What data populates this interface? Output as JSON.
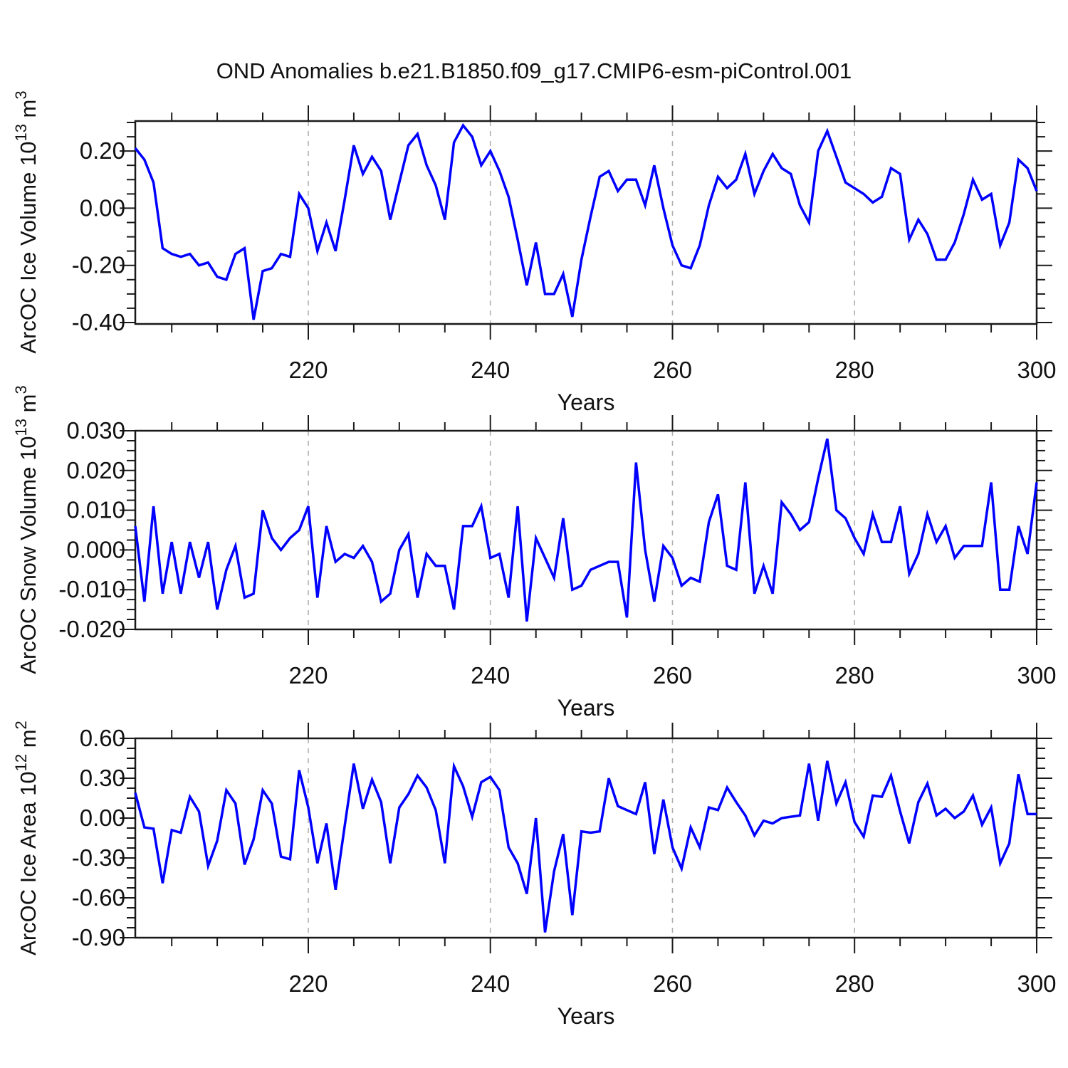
{
  "title": "OND Anomalies b.e21.B1850.f09_g17.CMIP6-esm-piControl.001",
  "xlabel": "Years",
  "axis_color": "#1a1a1a",
  "grid_color": "#b0b0b0",
  "line_color": "#0000ff",
  "xticks": [
    220,
    240,
    260,
    280,
    300
  ],
  "xtick_labels": [
    "220",
    "240",
    "260",
    "280",
    "300"
  ],
  "grid_years": [
    220,
    240,
    260,
    280
  ],
  "xminor_step": 5,
  "years": [
    201,
    202,
    203,
    204,
    205,
    206,
    207,
    208,
    209,
    210,
    211,
    212,
    213,
    214,
    215,
    216,
    217,
    218,
    219,
    220,
    221,
    222,
    223,
    224,
    225,
    226,
    227,
    228,
    229,
    230,
    231,
    232,
    233,
    234,
    235,
    236,
    237,
    238,
    239,
    240,
    241,
    242,
    243,
    244,
    245,
    246,
    247,
    248,
    249,
    250,
    251,
    252,
    253,
    254,
    255,
    256,
    257,
    258,
    259,
    260,
    261,
    262,
    263,
    264,
    265,
    266,
    267,
    268,
    269,
    270,
    271,
    272,
    273,
    274,
    275,
    276,
    277,
    278,
    279,
    280,
    281,
    282,
    283,
    284,
    285,
    286,
    287,
    288,
    289,
    290,
    291,
    292,
    293,
    294,
    295,
    296,
    297,
    298,
    299,
    300
  ],
  "chart_data": [
    {
      "type": "line",
      "id": "ice-volume",
      "ylabel_text": "ArcOC Ice Volume 10^13 m^3",
      "ylabel_parts": [
        {
          "t": "ArcOC Ice Volume 10"
        },
        {
          "t": "13",
          "sup": true
        },
        {
          "t": " m"
        },
        {
          "t": "3",
          "sup": true
        }
      ],
      "ylim": [
        -0.405,
        0.305
      ],
      "yticks": [
        0.2,
        0.0,
        -0.2,
        -0.4
      ],
      "ytick_labels": [
        "0.20",
        "0.00",
        "-0.20",
        "-0.40"
      ],
      "yminor_from": -0.4,
      "yminor_step": 0.05,
      "values": [
        0.21,
        0.17,
        0.09,
        -0.14,
        -0.16,
        -0.17,
        -0.16,
        -0.2,
        -0.19,
        -0.24,
        -0.25,
        -0.16,
        -0.14,
        -0.39,
        -0.22,
        -0.21,
        -0.16,
        -0.17,
        0.05,
        0.0,
        -0.15,
        -0.05,
        -0.15,
        0.03,
        0.22,
        0.12,
        0.18,
        0.13,
        -0.04,
        0.09,
        0.22,
        0.26,
        0.15,
        0.08,
        -0.04,
        0.23,
        0.29,
        0.25,
        0.15,
        0.2,
        0.13,
        0.04,
        -0.11,
        -0.27,
        -0.12,
        -0.3,
        -0.3,
        -0.23,
        -0.38,
        -0.18,
        -0.03,
        0.11,
        0.13,
        0.06,
        0.1,
        0.1,
        0.01,
        0.15,
        0.0,
        -0.13,
        -0.2,
        -0.21,
        -0.13,
        0.01,
        0.11,
        0.07,
        0.1,
        0.19,
        0.05,
        0.13,
        0.19,
        0.14,
        0.12,
        0.01,
        -0.05,
        0.2,
        0.27,
        0.18,
        0.09,
        0.07,
        0.05,
        0.02,
        0.04,
        0.14,
        0.12,
        -0.11,
        -0.04,
        -0.09,
        -0.18,
        -0.18,
        -0.12,
        -0.02,
        0.1,
        0.03,
        0.05,
        -0.13,
        -0.05,
        0.17,
        0.14,
        0.06
      ]
    },
    {
      "type": "line",
      "id": "snow-volume",
      "ylabel_text": "ArcOC Snow Volume 10^13 m^3",
      "ylabel_parts": [
        {
          "t": "ArcOC Snow Volume 10"
        },
        {
          "t": "13",
          "sup": true
        },
        {
          "t": " m"
        },
        {
          "t": "3",
          "sup": true
        }
      ],
      "ylim": [
        -0.02,
        0.03
      ],
      "yticks": [
        0.03,
        0.02,
        0.01,
        0.0,
        -0.01,
        -0.02
      ],
      "ytick_labels": [
        "0.030",
        "0.020",
        "0.010",
        "0.000",
        "-0.010",
        "-0.020"
      ],
      "yminor_from": -0.02,
      "yminor_step": 0.0025,
      "values": [
        0.006,
        -0.013,
        0.011,
        -0.011,
        0.002,
        -0.011,
        0.002,
        -0.007,
        0.002,
        -0.015,
        -0.005,
        0.001,
        -0.012,
        -0.011,
        0.01,
        0.003,
        0.0,
        0.003,
        0.005,
        0.011,
        -0.012,
        0.006,
        -0.003,
        -0.001,
        -0.002,
        0.001,
        -0.003,
        -0.013,
        -0.011,
        0.0,
        0.004,
        -0.012,
        -0.001,
        -0.004,
        -0.004,
        -0.015,
        0.006,
        0.006,
        0.011,
        -0.002,
        -0.001,
        -0.012,
        0.011,
        -0.018,
        0.003,
        -0.002,
        -0.007,
        0.008,
        -0.01,
        -0.009,
        -0.005,
        -0.004,
        -0.003,
        -0.003,
        -0.017,
        0.022,
        0.0,
        -0.013,
        0.001,
        -0.002,
        -0.009,
        -0.007,
        -0.008,
        0.007,
        0.014,
        -0.004,
        -0.005,
        0.017,
        -0.011,
        -0.004,
        -0.011,
        0.012,
        0.009,
        0.005,
        0.007,
        0.018,
        0.028,
        0.01,
        0.008,
        0.003,
        -0.001,
        0.009,
        0.002,
        0.002,
        0.011,
        -0.006,
        -0.001,
        0.009,
        0.002,
        0.006,
        -0.002,
        0.001,
        0.001,
        0.001,
        0.017,
        -0.01,
        -0.01,
        0.006,
        -0.001,
        0.017
      ]
    },
    {
      "type": "line",
      "id": "ice-area",
      "ylabel_text": "ArcOC Ice Area 10^12 m^2",
      "ylabel_parts": [
        {
          "t": "ArcOC Ice Area 10"
        },
        {
          "t": "12",
          "sup": true
        },
        {
          "t": " m"
        },
        {
          "t": "2",
          "sup": true
        }
      ],
      "ylim": [
        -0.9,
        0.6
      ],
      "yticks": [
        0.6,
        0.3,
        0.0,
        -0.3,
        -0.6,
        -0.9
      ],
      "ytick_labels": [
        "0.60",
        "0.30",
        "0.00",
        "-0.30",
        "-0.60",
        "-0.90"
      ],
      "yminor_from": -0.9,
      "yminor_step": 0.075,
      "values": [
        0.19,
        -0.07,
        -0.08,
        -0.49,
        -0.09,
        -0.11,
        0.16,
        0.05,
        -0.36,
        -0.17,
        0.21,
        0.11,
        -0.35,
        -0.16,
        0.21,
        0.11,
        -0.29,
        -0.31,
        0.36,
        0.08,
        -0.34,
        -0.04,
        -0.54,
        -0.06,
        0.41,
        0.07,
        0.29,
        0.12,
        -0.34,
        0.08,
        0.18,
        0.32,
        0.23,
        0.06,
        -0.34,
        0.39,
        0.24,
        0.01,
        0.27,
        0.31,
        0.21,
        -0.22,
        -0.34,
        -0.57,
        0.0,
        -0.86,
        -0.4,
        -0.12,
        -0.73,
        -0.1,
        -0.11,
        -0.1,
        0.3,
        0.09,
        0.06,
        0.03,
        0.27,
        -0.27,
        0.14,
        -0.22,
        -0.38,
        -0.07,
        -0.22,
        0.08,
        0.06,
        0.23,
        0.12,
        0.02,
        -0.13,
        -0.02,
        -0.04,
        0.0,
        0.01,
        0.02,
        0.41,
        -0.02,
        0.43,
        0.11,
        0.27,
        -0.03,
        -0.14,
        0.17,
        0.16,
        0.32,
        0.05,
        -0.19,
        0.12,
        0.26,
        0.02,
        0.07,
        0.0,
        0.05,
        0.17,
        -0.05,
        0.08,
        -0.34,
        -0.19,
        0.33,
        0.03,
        0.03
      ]
    }
  ]
}
